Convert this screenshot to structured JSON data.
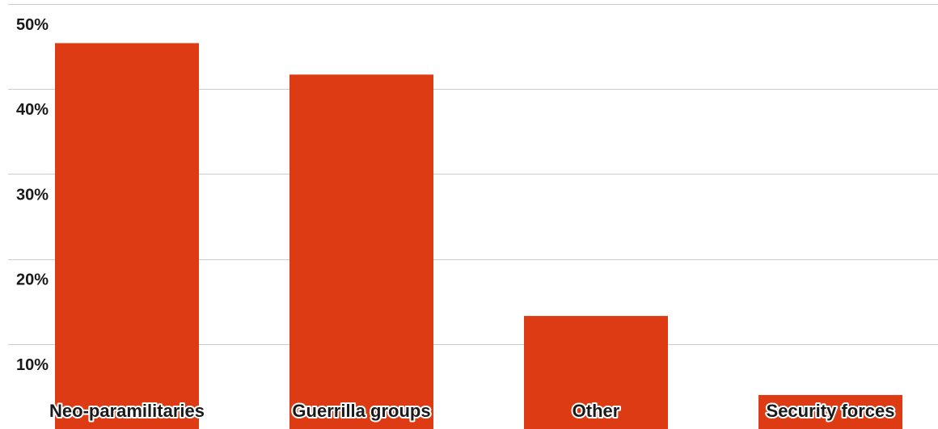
{
  "chart_data": {
    "type": "bar",
    "title": "",
    "xlabel": "",
    "ylabel": "",
    "categories": [
      "Neo-paramilitaries",
      "Guerrilla groups",
      "Other",
      "Security forces"
    ],
    "values": [
      45.4,
      41.7,
      13.3,
      4.0
    ],
    "ylim": [
      0,
      50
    ],
    "yticks": [
      10,
      20,
      30,
      40,
      50
    ],
    "ytick_labels": [
      "10%",
      "20%",
      "30%",
      "40%",
      "50%"
    ],
    "grid": true,
    "legend": "none",
    "colors": {
      "bar": "#dd3b14",
      "grid": "#cccccc",
      "text": "#1a1a1a"
    }
  }
}
